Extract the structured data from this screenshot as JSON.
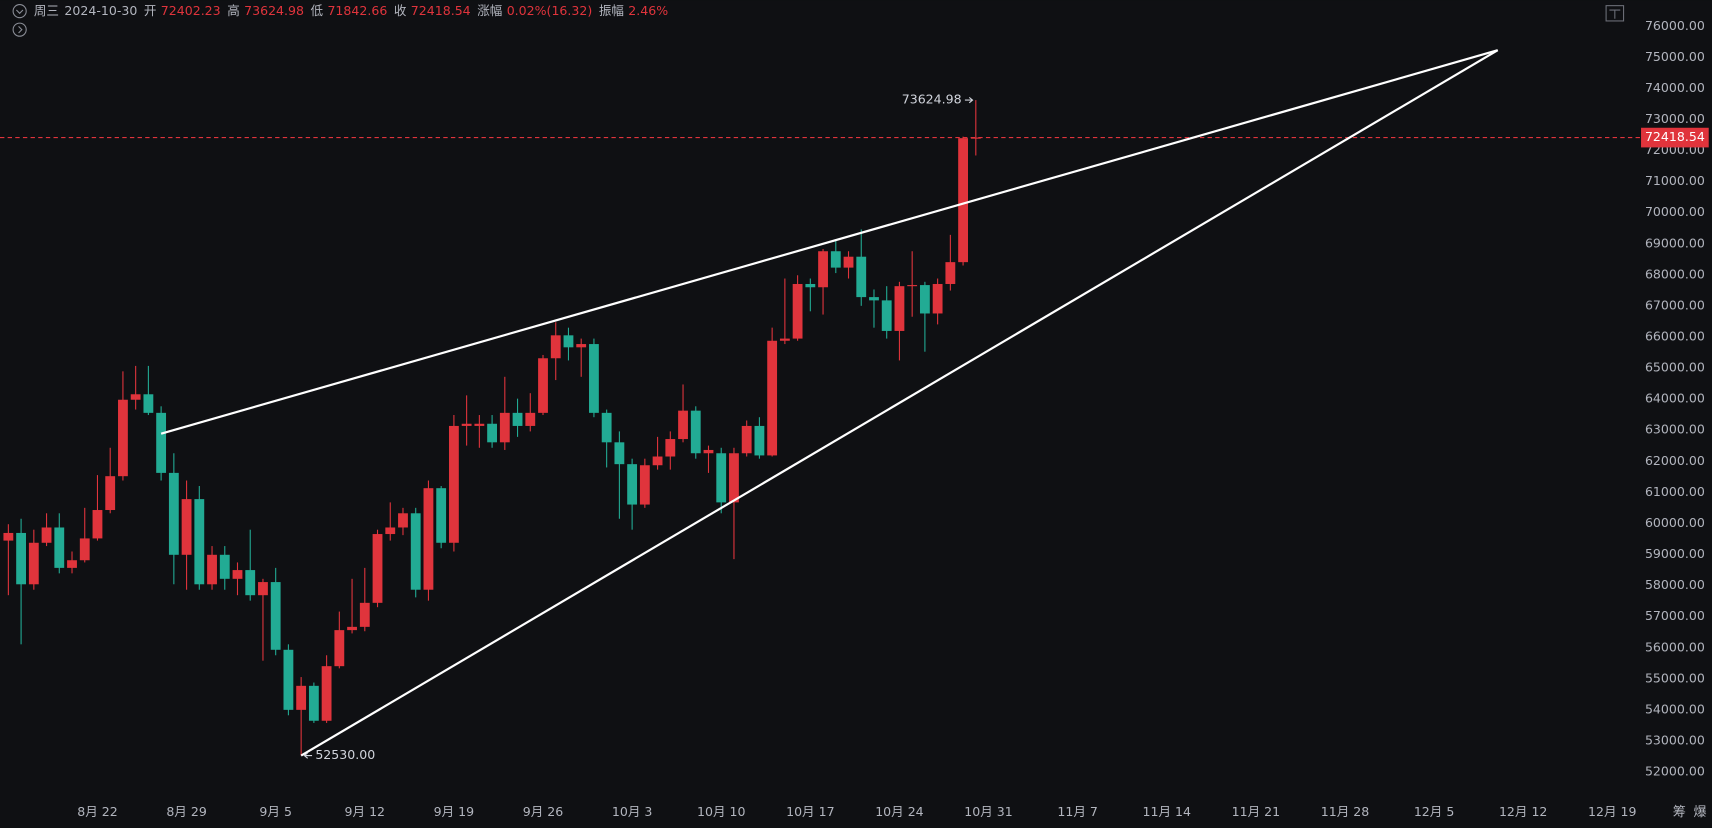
{
  "header": {
    "weekday": "周三",
    "date": "2024-10-30",
    "fields": [
      {
        "label": "开",
        "value": "72402.23"
      },
      {
        "label": "高",
        "value": "73624.98"
      },
      {
        "label": "低",
        "value": "71842.66"
      },
      {
        "label": "收",
        "value": "72418.54"
      },
      {
        "label": "涨幅",
        "value": "0.02%(16.32)"
      },
      {
        "label": "振幅",
        "value": "2.46%"
      }
    ]
  },
  "toolbar": [
    "筹",
    "爆"
  ],
  "chart_data": {
    "type": "candlestick",
    "up_color": "#e0343c",
    "down_color": "#22ab94",
    "grid": false,
    "x": [
      "2024-08-15",
      "2024-08-16",
      "2024-08-17",
      "2024-08-18",
      "2024-08-19",
      "2024-08-20",
      "2024-08-21",
      "2024-08-22",
      "2024-08-23",
      "2024-08-24",
      "2024-08-25",
      "2024-08-26",
      "2024-08-27",
      "2024-08-28",
      "2024-08-29",
      "2024-08-30",
      "2024-08-31",
      "2024-09-01",
      "2024-09-02",
      "2024-09-03",
      "2024-09-04",
      "2024-09-05",
      "2024-09-06",
      "2024-09-07",
      "2024-09-08",
      "2024-09-09",
      "2024-09-10",
      "2024-09-11",
      "2024-09-12",
      "2024-09-13",
      "2024-09-14",
      "2024-09-15",
      "2024-09-16",
      "2024-09-17",
      "2024-09-18",
      "2024-09-19",
      "2024-09-20",
      "2024-09-21",
      "2024-09-22",
      "2024-09-23",
      "2024-09-24",
      "2024-09-25",
      "2024-09-26",
      "2024-09-27",
      "2024-09-28",
      "2024-09-29",
      "2024-09-30",
      "2024-10-01",
      "2024-10-02",
      "2024-10-03",
      "2024-10-04",
      "2024-10-05",
      "2024-10-06",
      "2024-10-07",
      "2024-10-08",
      "2024-10-09",
      "2024-10-10",
      "2024-10-11",
      "2024-10-12",
      "2024-10-13",
      "2024-10-14",
      "2024-10-15",
      "2024-10-16",
      "2024-10-17",
      "2024-10-18",
      "2024-10-19",
      "2024-10-20",
      "2024-10-21",
      "2024-10-22",
      "2024-10-23",
      "2024-10-24",
      "2024-10-25",
      "2024-10-26",
      "2024-10-27",
      "2024-10-28",
      "2024-10-29",
      "2024-10-30"
    ],
    "open": [
      59449,
      59695,
      58043,
      59379,
      59871,
      58571,
      58817,
      59519,
      60433,
      61522,
      63982,
      64158,
      63560,
      61628,
      58992,
      60784,
      58043,
      58992,
      58219,
      58500,
      57692,
      58114,
      55935,
      54002,
      54775,
      53651,
      55408,
      56568,
      56673,
      57446,
      59660,
      59871,
      60328,
      57868,
      61136,
      59379,
      63139,
      63139,
      63209,
      62612,
      63560,
      63139,
      63560,
      65317,
      66055,
      65669,
      65774,
      63560,
      62612,
      61909,
      60609,
      61874,
      62155,
      62717,
      63631,
      62260,
      62260,
      60679,
      62260,
      63139,
      62190,
      65880,
      65950,
      67707,
      67602,
      68761,
      68234,
      68585,
      67285,
      67180,
      66196,
      67637,
      67672,
      66758,
      67707,
      68410,
      72402.23
    ],
    "high": [
      59976,
      60152,
      59800,
      60328,
      60328,
      59098,
      60503,
      61557,
      62436,
      64896,
      65071,
      65071,
      63771,
      62260,
      61382,
      61206,
      59273,
      59273,
      58746,
      59800,
      58219,
      58571,
      56111,
      55057,
      54881,
      55759,
      57165,
      58219,
      58571,
      59800,
      60679,
      60503,
      60503,
      61382,
      61206,
      63490,
      64123,
      63490,
      63490,
      64720,
      64017,
      64193,
      65423,
      66477,
      66301,
      65950,
      65950,
      63666,
      62963,
      62085,
      62085,
      62787,
      62963,
      64474,
      63771,
      62506,
      62436,
      62436,
      63314,
      63420,
      66301,
      67883,
      67988,
      67883,
      68831,
      69113,
      68761,
      69464,
      67531,
      67637,
      67777,
      68761,
      67777,
      67883,
      69288,
      72451,
      73624.98
    ],
    "low": [
      57692,
      56111,
      57868,
      59273,
      58395,
      58395,
      58746,
      59449,
      60328,
      61382,
      63666,
      63490,
      61382,
      58043,
      57868,
      57868,
      57868,
      57868,
      57692,
      57516,
      55584,
      55759,
      53827,
      52530,
      53581,
      53581,
      55338,
      56462,
      56532,
      57306,
      59449,
      59625,
      57622,
      57516,
      59203,
      59098,
      62506,
      62436,
      62436,
      62366,
      62787,
      62963,
      63490,
      64615,
      65247,
      64720,
      63420,
      61803,
      60152,
      59800,
      60503,
      61733,
      61733,
      62612,
      62085,
      61628,
      60328,
      58852,
      62155,
      62085,
      62155,
      65774,
      65880,
      66828,
      66723,
      68058,
      67883,
      67004,
      66301,
      65950,
      65247,
      66653,
      65528,
      66407,
      67496,
      68304,
      71842.66
    ],
    "close": [
      59695,
      58043,
      59379,
      59871,
      58571,
      58817,
      59519,
      60433,
      61522,
      63982,
      64158,
      63560,
      61628,
      58992,
      60784,
      58043,
      58992,
      58219,
      58500,
      57692,
      58114,
      55935,
      54002,
      54775,
      53651,
      55408,
      56568,
      56673,
      57446,
      59660,
      59871,
      60328,
      57868,
      61136,
      59379,
      63139,
      63209,
      63209,
      62612,
      63560,
      63139,
      63560,
      65317,
      66055,
      65669,
      65774,
      63560,
      62612,
      61909,
      60609,
      61874,
      62155,
      62717,
      63631,
      62260,
      62366,
      60679,
      62260,
      63139,
      62190,
      65880,
      65950,
      67707,
      67602,
      68761,
      68234,
      68585,
      67285,
      67180,
      66196,
      67637,
      67672,
      66758,
      67707,
      68410,
      72400,
      72418.54
    ],
    "xlim": [
      "2024-08-14",
      "2024-12-21"
    ],
    "xticks": [
      {
        "value": "2024-08-22",
        "label": "8月 22"
      },
      {
        "value": "2024-08-29",
        "label": "8月 29"
      },
      {
        "value": "2024-09-05",
        "label": "9月 5"
      },
      {
        "value": "2024-09-12",
        "label": "9月 12"
      },
      {
        "value": "2024-09-19",
        "label": "9月 19"
      },
      {
        "value": "2024-09-26",
        "label": "9月 26"
      },
      {
        "value": "2024-10-03",
        "label": "10月 3"
      },
      {
        "value": "2024-10-10",
        "label": "10月 10"
      },
      {
        "value": "2024-10-17",
        "label": "10月 17"
      },
      {
        "value": "2024-10-24",
        "label": "10月 24"
      },
      {
        "value": "2024-10-31",
        "label": "10月 31"
      },
      {
        "value": "2024-11-07",
        "label": "11月 7"
      },
      {
        "value": "2024-11-14",
        "label": "11月 14"
      },
      {
        "value": "2024-11-21",
        "label": "11月 21"
      },
      {
        "value": "2024-11-28",
        "label": "11月 28"
      },
      {
        "value": "2024-12-05",
        "label": "12月 5"
      },
      {
        "value": "2024-12-12",
        "label": "12月 12"
      },
      {
        "value": "2024-12-19",
        "label": "12月 19"
      }
    ],
    "ylim": [
      51190,
      76840
    ],
    "yticks": [
      {
        "value": 52000,
        "label": "52000.00"
      },
      {
        "value": 53000,
        "label": "53000.00"
      },
      {
        "value": 54000,
        "label": "54000.00"
      },
      {
        "value": 55000,
        "label": "55000.00"
      },
      {
        "value": 56000,
        "label": "56000.00"
      },
      {
        "value": 57000,
        "label": "57000.00"
      },
      {
        "value": 58000,
        "label": "58000.00"
      },
      {
        "value": 59000,
        "label": "59000.00"
      },
      {
        "value": 60000,
        "label": "60000.00"
      },
      {
        "value": 61000,
        "label": "61000.00"
      },
      {
        "value": 62000,
        "label": "62000.00"
      },
      {
        "value": 63000,
        "label": "63000.00"
      },
      {
        "value": 64000,
        "label": "64000.00"
      },
      {
        "value": 65000,
        "label": "65000.00"
      },
      {
        "value": 66000,
        "label": "66000.00"
      },
      {
        "value": 67000,
        "label": "67000.00"
      },
      {
        "value": 68000,
        "label": "68000.00"
      },
      {
        "value": 69000,
        "label": "69000.00"
      },
      {
        "value": 70000,
        "label": "70000.00"
      },
      {
        "value": 71000,
        "label": "71000.00"
      },
      {
        "value": 72000,
        "label": "72000.00"
      },
      {
        "value": 73000,
        "label": "73000.00"
      },
      {
        "value": 74000,
        "label": "74000.00"
      },
      {
        "value": 75000,
        "label": "75000.00"
      },
      {
        "value": 76000,
        "label": "76000.00"
      }
    ],
    "last_price": 72418.54,
    "trendlines": [
      {
        "x": [
          "2024-08-27",
          "2024-12-10"
        ],
        "y": [
          62890,
          75230
        ],
        "color": "#ffffff"
      },
      {
        "x": [
          "2024-09-07",
          "2024-12-10"
        ],
        "y": [
          52530,
          75230
        ],
        "color": "#ffffff"
      }
    ],
    "annotations": [
      {
        "x": "2024-10-30",
        "y": 73624.98,
        "label": "73624.98",
        "side": "left"
      },
      {
        "x": "2024-09-07",
        "y": 52530,
        "label": "52530.00",
        "side": "right"
      }
    ]
  }
}
